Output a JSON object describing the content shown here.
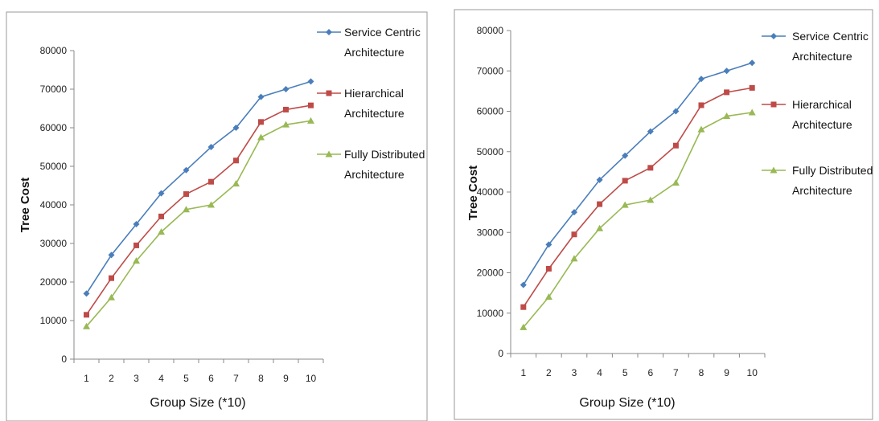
{
  "chart_data": [
    {
      "type": "line",
      "xlabel": "Group Size (*10)",
      "ylabel": "Tree Cost",
      "x": [
        1,
        2,
        3,
        4,
        5,
        6,
        7,
        8,
        9,
        10
      ],
      "ylim": [
        0,
        80000
      ],
      "yticks": [
        0,
        10000,
        20000,
        30000,
        40000,
        50000,
        60000,
        70000,
        80000
      ],
      "legend_position": "right",
      "series": [
        {
          "name_lines": [
            "Service Centric",
            "Architecture"
          ],
          "color": "#4a7ebb",
          "marker": "diamond",
          "values": [
            17000,
            27000,
            35000,
            43000,
            49000,
            55000,
            60000,
            68000,
            70000,
            72000
          ]
        },
        {
          "name_lines": [
            "Hierarchical",
            "Architecture"
          ],
          "color": "#be4b48",
          "marker": "square",
          "values": [
            11500,
            21000,
            29500,
            37000,
            42800,
            46000,
            51500,
            61500,
            64700,
            65800
          ]
        },
        {
          "name_lines": [
            "Fully Distributed",
            "Architecture"
          ],
          "color": "#98b954",
          "marker": "triangle",
          "values": [
            8500,
            16000,
            25500,
            33000,
            38800,
            40000,
            45500,
            57500,
            60800,
            61800
          ]
        }
      ]
    },
    {
      "type": "line",
      "xlabel": "Group Size (*10)",
      "ylabel": "Tree Cost",
      "x": [
        1,
        2,
        3,
        4,
        5,
        6,
        7,
        8,
        9,
        10
      ],
      "ylim": [
        0,
        80000
      ],
      "yticks": [
        0,
        10000,
        20000,
        30000,
        40000,
        50000,
        60000,
        70000,
        80000
      ],
      "legend_position": "right",
      "series": [
        {
          "name_lines": [
            "Service Centric",
            "Architecture"
          ],
          "color": "#4a7ebb",
          "marker": "diamond",
          "values": [
            17000,
            27000,
            35000,
            43000,
            49000,
            55000,
            60000,
            68000,
            70000,
            72000
          ]
        },
        {
          "name_lines": [
            "Hierarchical",
            "Architecture"
          ],
          "color": "#be4b48",
          "marker": "square",
          "values": [
            11500,
            21000,
            29500,
            37000,
            42800,
            46000,
            51500,
            61500,
            64700,
            65800
          ]
        },
        {
          "name_lines": [
            "Fully Distributed",
            "Architecture"
          ],
          "color": "#98b954",
          "marker": "triangle",
          "values": [
            6500,
            14000,
            23500,
            31000,
            36800,
            38000,
            42300,
            55500,
            58800,
            59700
          ]
        }
      ]
    }
  ]
}
